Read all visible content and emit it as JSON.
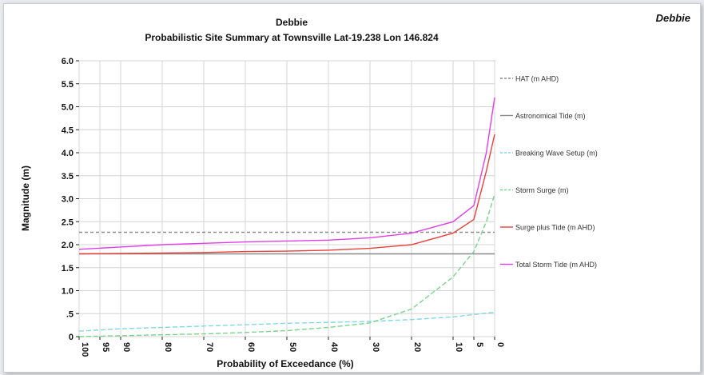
{
  "corner_label": "Debbie",
  "chart_data": {
    "type": "line",
    "title": "Debbie",
    "subtitle": "Probabilistic Site Summary at Townsville  Lat-19.238 Lon 146.824",
    "xlabel": "Probability of Exceedance (%)",
    "ylabel": "Magnitude (m)",
    "xlim": [
      100,
      0
    ],
    "ylim": [
      0,
      6.0
    ],
    "x_ticks": [
      "100",
      "95",
      "90",
      "80",
      "70",
      "60",
      "50",
      "40",
      "30",
      "20",
      "10",
      "5",
      "0"
    ],
    "y_ticks": [
      "0",
      ".5",
      "1.0",
      "1.5",
      "2.0",
      "2.5",
      "3.0",
      "3.5",
      "4.0",
      "4.5",
      "5.0",
      "5.5",
      "6.0"
    ],
    "grid": true,
    "legend_position": "right",
    "series": [
      {
        "name": "HAT (m AHD)",
        "color": "#8a8a8a",
        "dash": "4,3",
        "points": [
          [
            100,
            2.27
          ],
          [
            0,
            2.27
          ]
        ]
      },
      {
        "name": "Astronomical Tide (m)",
        "color": "#8a8a8a",
        "dash": "",
        "points": [
          [
            100,
            1.8
          ],
          [
            0,
            1.8
          ]
        ]
      },
      {
        "name": "Breaking Wave Setup (m)",
        "color": "#7fd8e6",
        "dash": "6,3",
        "points": [
          [
            100,
            0.12
          ],
          [
            90,
            0.17
          ],
          [
            80,
            0.2
          ],
          [
            70,
            0.23
          ],
          [
            60,
            0.26
          ],
          [
            50,
            0.29
          ],
          [
            40,
            0.31
          ],
          [
            30,
            0.33
          ],
          [
            20,
            0.37
          ],
          [
            10,
            0.43
          ],
          [
            5,
            0.48
          ],
          [
            0,
            0.53
          ]
        ]
      },
      {
        "name": "Storm Surge (m)",
        "color": "#7ad48c",
        "dash": "6,3",
        "points": [
          [
            100,
            0.0
          ],
          [
            90,
            0.02
          ],
          [
            80,
            0.04
          ],
          [
            70,
            0.06
          ],
          [
            60,
            0.09
          ],
          [
            50,
            0.13
          ],
          [
            40,
            0.2
          ],
          [
            30,
            0.3
          ],
          [
            20,
            0.6
          ],
          [
            10,
            1.3
          ],
          [
            5,
            1.85
          ],
          [
            2,
            2.5
          ],
          [
            0,
            3.1
          ]
        ]
      },
      {
        "name": "Surge plus Tide (m AHD)",
        "color": "#e8403a",
        "dash": "",
        "points": [
          [
            100,
            1.8
          ],
          [
            90,
            1.81
          ],
          [
            80,
            1.82
          ],
          [
            70,
            1.83
          ],
          [
            60,
            1.85
          ],
          [
            50,
            1.86
          ],
          [
            40,
            1.88
          ],
          [
            30,
            1.92
          ],
          [
            20,
            2.0
          ],
          [
            10,
            2.25
          ],
          [
            5,
            2.55
          ],
          [
            2,
            3.6
          ],
          [
            0,
            4.4
          ]
        ]
      },
      {
        "name": "Total Storm Tide (m AHD)",
        "color": "#e23ee8",
        "dash": "",
        "points": [
          [
            100,
            1.9
          ],
          [
            90,
            1.95
          ],
          [
            80,
            2.0
          ],
          [
            70,
            2.03
          ],
          [
            60,
            2.06
          ],
          [
            50,
            2.08
          ],
          [
            40,
            2.1
          ],
          [
            30,
            2.15
          ],
          [
            20,
            2.25
          ],
          [
            10,
            2.5
          ],
          [
            5,
            2.85
          ],
          [
            2,
            4.0
          ],
          [
            0,
            5.2
          ]
        ]
      }
    ]
  }
}
